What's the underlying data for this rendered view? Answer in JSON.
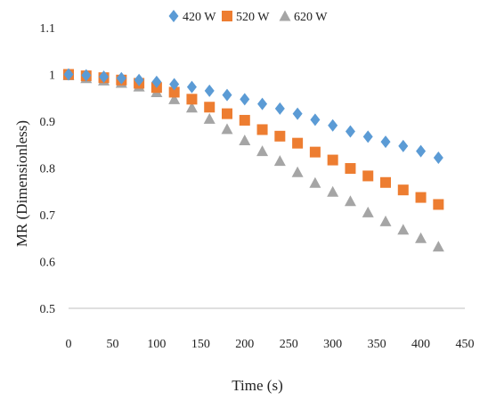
{
  "chart_data": {
    "type": "scatter",
    "title": "",
    "xlabel": "Time (s)",
    "ylabel": "MR (Dimensionless)",
    "xlim": [
      0,
      450
    ],
    "ylim": [
      0.5,
      1.1
    ],
    "x_ticks": [
      "0",
      "50",
      "100",
      "150",
      "200",
      "250",
      "300",
      "350",
      "400",
      "450"
    ],
    "y_ticks": [
      "0.5",
      "0.6",
      "0.7",
      "0.8",
      "0.9",
      "1",
      "1.1"
    ],
    "grid": false,
    "legend_position": "top",
    "x": [
      0,
      20,
      40,
      60,
      80,
      100,
      120,
      140,
      160,
      180,
      200,
      220,
      240,
      260,
      280,
      300,
      320,
      340,
      360,
      380,
      400,
      420
    ],
    "series": [
      {
        "name": "420 W",
        "marker": "diamond",
        "color": "#5B9BD5",
        "values": [
          1.0,
          0.998,
          0.995,
          0.992,
          0.988,
          0.984,
          0.979,
          0.973,
          0.965,
          0.956,
          0.947,
          0.937,
          0.927,
          0.916,
          0.903,
          0.891,
          0.878,
          0.867,
          0.856,
          0.847,
          0.836,
          0.822
        ]
      },
      {
        "name": "520 W",
        "marker": "square",
        "color": "#ED7D31",
        "values": [
          1.0,
          0.997,
          0.993,
          0.988,
          0.981,
          0.972,
          0.962,
          0.947,
          0.93,
          0.916,
          0.902,
          0.882,
          0.868,
          0.853,
          0.834,
          0.817,
          0.799,
          0.783,
          0.769,
          0.753,
          0.737,
          0.722
        ]
      },
      {
        "name": "620 W",
        "marker": "triangle",
        "color": "#A5A5A5",
        "values": [
          0.998,
          0.992,
          0.987,
          0.982,
          0.974,
          0.962,
          0.947,
          0.929,
          0.905,
          0.883,
          0.859,
          0.836,
          0.815,
          0.791,
          0.768,
          0.749,
          0.729,
          0.705,
          0.686,
          0.668,
          0.65,
          0.632
        ]
      }
    ]
  }
}
